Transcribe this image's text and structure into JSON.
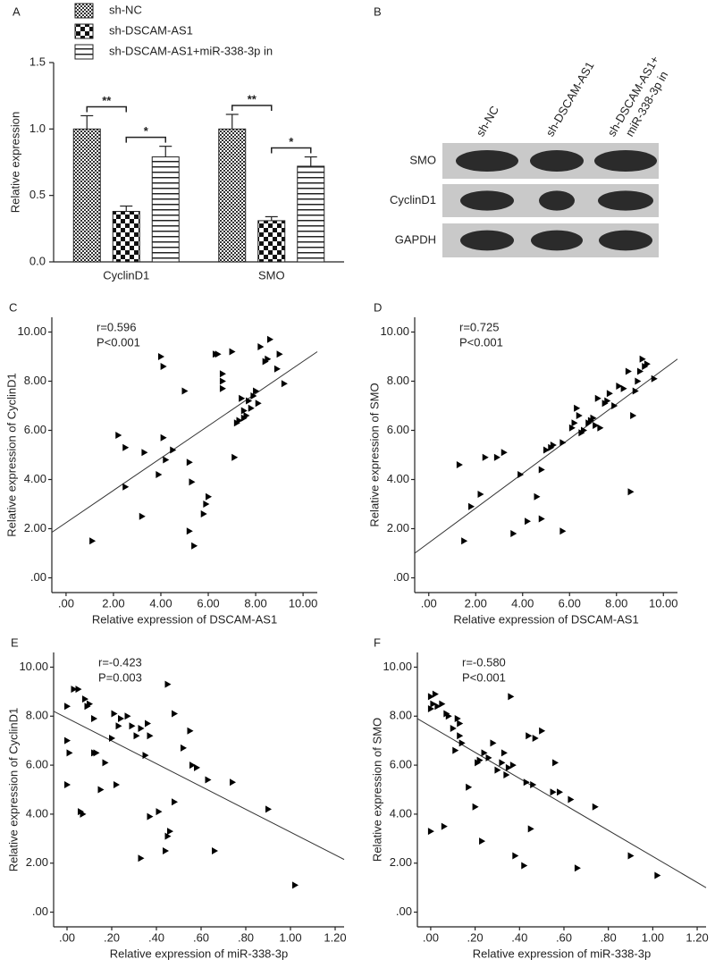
{
  "chart_data": [
    {
      "type": "bar",
      "panel": "A",
      "y_label": "Relative expression",
      "categories": [
        "CyclinD1",
        "SMO"
      ],
      "series": [
        {
          "name": "sh-NC",
          "color": "#333333",
          "pattern": "fine-checker",
          "values": [
            1.0,
            1.0
          ],
          "errors": [
            0.1,
            0.11
          ]
        },
        {
          "name": "sh-DSCAM-AS1",
          "color": "#111111",
          "pattern": "checker",
          "values": [
            0.38,
            0.31
          ],
          "errors": [
            0.04,
            0.03
          ]
        },
        {
          "name": "sh-DSCAM-AS1+miR-338-3p in",
          "color": "#222222",
          "pattern": "hstripe",
          "values": [
            0.79,
            0.72
          ],
          "errors": [
            0.08,
            0.07
          ]
        }
      ],
      "comparisons": [
        {
          "category": 0,
          "pair": [
            0,
            1
          ],
          "label": "**"
        },
        {
          "category": 0,
          "pair": [
            1,
            2
          ],
          "label": "*"
        },
        {
          "category": 1,
          "pair": [
            0,
            1
          ],
          "label": "**"
        },
        {
          "category": 1,
          "pair": [
            1,
            2
          ],
          "label": "*"
        }
      ],
      "ylim": [
        0,
        1.5
      ],
      "yticks": [
        {
          "value": 0,
          "label": "0.0"
        },
        {
          "value": 0.5,
          "label": "0.5"
        },
        {
          "value": 1,
          "label": "1.0"
        },
        {
          "value": 1.5,
          "label": "1.5"
        }
      ]
    },
    {
      "type": "scatter",
      "panel": "C",
      "x_label": "Relative expression of DSCAM-AS1",
      "y_label": "Relative expression of CyclinD1",
      "stats": [
        "r=0.596",
        "P<0.001"
      ],
      "color": "#000000",
      "x": [
        1.1,
        2.2,
        2.5,
        2.5,
        3.2,
        3.3,
        3.9,
        4.0,
        4.1,
        4.1,
        4.2,
        4.5,
        5.0,
        5.2,
        5.2,
        5.3,
        5.4,
        5.8,
        5.9,
        6.0,
        6.3,
        6.4,
        6.6,
        6.6,
        6.6,
        7.0,
        7.1,
        7.2,
        7.3,
        7.4,
        7.5,
        7.5,
        7.6,
        7.7,
        7.8,
        7.9,
        8.0,
        8.1,
        8.2,
        8.4,
        8.5,
        8.6,
        8.9,
        9.0,
        9.2
      ],
      "values": [
        1.5,
        5.8,
        5.3,
        3.7,
        2.5,
        5.1,
        4.2,
        9.0,
        8.6,
        5.7,
        4.8,
        5.2,
        7.6,
        1.9,
        4.7,
        3.9,
        1.3,
        2.6,
        3.0,
        3.3,
        9.1,
        9.1,
        8.3,
        8.0,
        7.7,
        9.2,
        4.9,
        6.3,
        6.4,
        7.3,
        6.8,
        6.5,
        6.6,
        7.2,
        6.9,
        7.4,
        7.6,
        7.1,
        9.4,
        8.8,
        8.9,
        9.7,
        8.5,
        9.1,
        7.9
      ],
      "fit": {
        "x": [
          -0.6,
          10.6
        ],
        "y": [
          1.85,
          9.2
        ]
      },
      "xlim": [
        -0.6,
        10.6
      ],
      "ylim": [
        -0.6,
        10.6
      ],
      "xticks": [
        {
          "value": 0,
          "label": ".00"
        },
        {
          "value": 2,
          "label": "2.00"
        },
        {
          "value": 4,
          "label": "4.00"
        },
        {
          "value": 6,
          "label": "6.00"
        },
        {
          "value": 8,
          "label": "8.00"
        },
        {
          "value": 10,
          "label": "10.00"
        }
      ],
      "yticks": [
        {
          "value": 0,
          "label": ".00"
        },
        {
          "value": 2,
          "label": "2.00"
        },
        {
          "value": 4,
          "label": "4.00"
        },
        {
          "value": 6,
          "label": "6.00"
        },
        {
          "value": 8,
          "label": "8.00"
        },
        {
          "value": 10,
          "label": "10.00"
        }
      ]
    },
    {
      "type": "scatter",
      "panel": "D",
      "x_label": "Relative expression of DSCAM-AS1",
      "y_label": "Relative expression of SMO",
      "stats": [
        "r=0.725",
        "P<0.001"
      ],
      "color": "#000000",
      "x": [
        1.3,
        1.5,
        1.8,
        2.2,
        2.4,
        2.9,
        3.2,
        3.6,
        3.9,
        4.2,
        4.6,
        4.8,
        4.8,
        5.0,
        5.2,
        5.3,
        5.7,
        5.7,
        6.1,
        6.2,
        6.3,
        6.4,
        6.5,
        6.6,
        6.8,
        6.9,
        7.0,
        7.1,
        7.2,
        7.3,
        7.5,
        7.6,
        7.7,
        7.9,
        8.1,
        8.3,
        8.5,
        8.6,
        8.7,
        8.8,
        8.9,
        9.0,
        9.1,
        9.2,
        9.3,
        9.6
      ],
      "values": [
        4.6,
        1.5,
        2.9,
        3.4,
        4.9,
        4.9,
        5.1,
        1.8,
        4.2,
        2.3,
        3.3,
        2.4,
        4.4,
        5.2,
        5.3,
        5.4,
        1.9,
        5.5,
        6.1,
        6.3,
        6.9,
        6.6,
        5.9,
        6.0,
        6.3,
        6.4,
        6.5,
        6.2,
        7.3,
        6.1,
        7.1,
        7.2,
        7.5,
        7.0,
        7.8,
        7.7,
        8.4,
        3.5,
        6.6,
        7.6,
        8.0,
        8.4,
        8.9,
        8.6,
        8.7,
        8.1
      ],
      "fit": {
        "x": [
          -0.6,
          10.6
        ],
        "y": [
          1.0,
          8.9
        ]
      },
      "xlim": [
        -0.6,
        10.6
      ],
      "ylim": [
        -0.6,
        10.6
      ],
      "xticks": [
        {
          "value": 0,
          "label": ".00"
        },
        {
          "value": 2,
          "label": "2.00"
        },
        {
          "value": 4,
          "label": "4.00"
        },
        {
          "value": 6,
          "label": "6.00"
        },
        {
          "value": 8,
          "label": "8.00"
        },
        {
          "value": 10,
          "label": "10.00"
        }
      ],
      "yticks": [
        {
          "value": 0,
          "label": ".00"
        },
        {
          "value": 2,
          "label": "2.00"
        },
        {
          "value": 4,
          "label": "4.00"
        },
        {
          "value": 6,
          "label": "6.00"
        },
        {
          "value": 8,
          "label": "8.00"
        },
        {
          "value": 10,
          "label": "10.00"
        }
      ]
    },
    {
      "type": "scatter",
      "panel": "E",
      "x_label": "Relative expression of miR-338-3p",
      "y_label": "Relative expression of CyclinD1",
      "stats": [
        "r=-0.423",
        "P=0.003"
      ],
      "color": "#000000",
      "x": [
        0.0,
        0.0,
        0.0,
        0.01,
        0.03,
        0.05,
        0.06,
        0.07,
        0.08,
        0.09,
        0.1,
        0.12,
        0.12,
        0.13,
        0.15,
        0.17,
        0.2,
        0.21,
        0.22,
        0.23,
        0.24,
        0.27,
        0.29,
        0.31,
        0.33,
        0.33,
        0.35,
        0.36,
        0.37,
        0.37,
        0.41,
        0.44,
        0.45,
        0.45,
        0.46,
        0.48,
        0.48,
        0.52,
        0.55,
        0.56,
        0.58,
        0.63,
        0.66,
        0.74,
        0.9,
        1.02
      ],
      "values": [
        5.2,
        7.0,
        8.4,
        6.5,
        9.1,
        9.1,
        4.1,
        4.0,
        8.7,
        8.4,
        8.5,
        7.9,
        6.5,
        6.5,
        5.0,
        6.1,
        7.1,
        8.1,
        5.2,
        7.6,
        7.9,
        8.0,
        7.6,
        7.2,
        7.5,
        2.2,
        6.4,
        7.7,
        7.2,
        3.9,
        4.1,
        2.5,
        3.1,
        9.3,
        3.3,
        8.1,
        4.5,
        6.7,
        7.4,
        6.0,
        5.9,
        5.4,
        2.5,
        5.3,
        4.2,
        1.1
      ],
      "fit": {
        "x": [
          -0.06,
          1.24
        ],
        "y": [
          8.2,
          2.15
        ]
      },
      "xlim": [
        -0.06,
        1.24
      ],
      "ylim": [
        -0.6,
        10.6
      ],
      "xticks": [
        {
          "value": 0,
          "label": ".00"
        },
        {
          "value": 0.2,
          "label": ".20"
        },
        {
          "value": 0.4,
          "label": ".40"
        },
        {
          "value": 0.6,
          "label": ".60"
        },
        {
          "value": 0.8,
          "label": ".80"
        },
        {
          "value": 1,
          "label": "1.00"
        },
        {
          "value": 1.2,
          "label": "1.20"
        }
      ],
      "yticks": [
        {
          "value": 0,
          "label": ".00"
        },
        {
          "value": 2,
          "label": "2.00"
        },
        {
          "value": 4,
          "label": "4.00"
        },
        {
          "value": 6,
          "label": "6.00"
        },
        {
          "value": 8,
          "label": "8.00"
        },
        {
          "value": 10,
          "label": "10.00"
        }
      ]
    },
    {
      "type": "scatter",
      "panel": "F",
      "x_label": "Relative expression of miR-338-3p",
      "y_label": "Relative expression of SMO",
      "stats": [
        "r=-0.580",
        "P<0.001"
      ],
      "color": "#000000",
      "x": [
        0.0,
        0.0,
        0.0,
        0.01,
        0.02,
        0.03,
        0.05,
        0.06,
        0.07,
        0.08,
        0.1,
        0.11,
        0.12,
        0.13,
        0.13,
        0.14,
        0.17,
        0.2,
        0.21,
        0.22,
        0.23,
        0.24,
        0.26,
        0.28,
        0.3,
        0.32,
        0.33,
        0.34,
        0.35,
        0.36,
        0.37,
        0.38,
        0.42,
        0.43,
        0.44,
        0.45,
        0.46,
        0.47,
        0.5,
        0.55,
        0.56,
        0.58,
        0.63,
        0.66,
        0.74,
        0.9,
        1.02
      ],
      "values": [
        3.3,
        8.3,
        8.8,
        8.5,
        8.9,
        8.4,
        8.5,
        3.5,
        8.1,
        8.0,
        7.5,
        6.6,
        7.9,
        7.7,
        7.2,
        6.9,
        5.1,
        4.3,
        6.1,
        6.2,
        2.9,
        6.5,
        6.3,
        6.9,
        5.8,
        6.1,
        6.5,
        5.6,
        5.9,
        8.8,
        6.0,
        2.3,
        1.9,
        5.3,
        7.2,
        3.4,
        5.2,
        7.1,
        7.4,
        4.9,
        6.1,
        4.9,
        4.6,
        1.8,
        4.3,
        2.3,
        1.5
      ],
      "fit": {
        "x": [
          -0.06,
          1.24
        ],
        "y": [
          7.9,
          1.0
        ]
      },
      "xlim": [
        -0.06,
        1.24
      ],
      "ylim": [
        -0.6,
        10.6
      ],
      "xticks": [
        {
          "value": 0,
          "label": ".00"
        },
        {
          "value": 0.2,
          "label": ".20"
        },
        {
          "value": 0.4,
          "label": ".40"
        },
        {
          "value": 0.6,
          "label": ".60"
        },
        {
          "value": 0.8,
          "label": ".80"
        },
        {
          "value": 1,
          "label": "1.00"
        },
        {
          "value": 1.2,
          "label": "1.20"
        }
      ],
      "yticks": [
        {
          "value": 0,
          "label": ".00"
        },
        {
          "value": 2,
          "label": "2.00"
        },
        {
          "value": 4,
          "label": "4.00"
        },
        {
          "value": 6,
          "label": "6.00"
        },
        {
          "value": 8,
          "label": "8.00"
        },
        {
          "value": 10,
          "label": "10.00"
        }
      ]
    }
  ],
  "blot": {
    "panel": "B",
    "lanes": [
      [
        "sh-NC"
      ],
      [
        "sh-DSCAM-AS1"
      ],
      [
        "sh-DSCAM-AS1+",
        "miR-338-3p in"
      ]
    ],
    "rows": [
      "SMO",
      "CyclinD1",
      "GAPDH"
    ]
  }
}
